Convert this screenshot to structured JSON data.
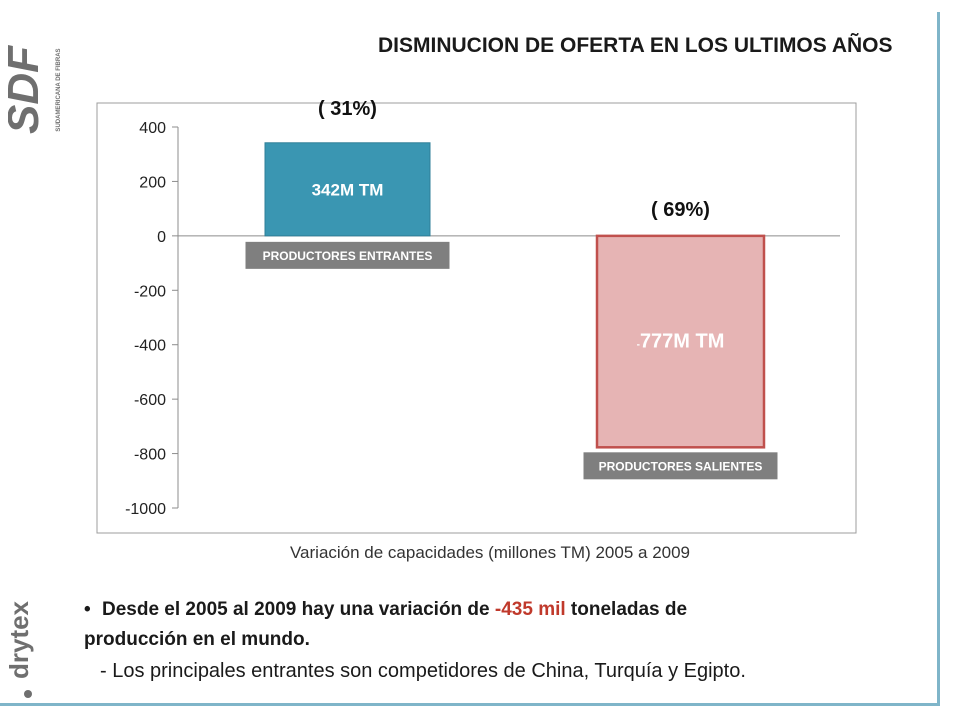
{
  "slide": {
    "title": "DISMINUCION DE OFERTA EN LOS ULTIMOS AÑOS",
    "logo_top_text": "SDF",
    "logo_top_subtext": "SUDAMERICANA DE FIBRAS",
    "logo_bottom_text": "drytex"
  },
  "colors": {
    "entrantes_fill": "#3a96b2",
    "salientes_fill": "#e6b4b4",
    "salientes_border": "#c0504d",
    "label_box": "#7f7f7f",
    "frame": "#7fb5c9"
  },
  "chart_data": {
    "type": "bar",
    "xlabel": "Variación de capacidades (millones TM) 2005 a 2009",
    "ylabel": "",
    "ylim": [
      -1000,
      400
    ],
    "yticks": [
      400,
      200,
      0,
      -200,
      -400,
      -600,
      -800,
      -1000
    ],
    "ytick_labels": [
      "400",
      "200",
      "0",
      "-200",
      "-400",
      "-600",
      "-800",
      "-1000"
    ],
    "grid": false,
    "categories": [
      "PRODUCTORES ENTRANTES",
      "PRODUCTORES SALIENTES"
    ],
    "values": [
      342,
      -777
    ],
    "data_labels": [
      "342M TM",
      "777M TM"
    ],
    "data_label_prefix": [
      "",
      "-"
    ],
    "share_labels": [
      "( 31%)",
      "( 69%)"
    ]
  },
  "bullets": {
    "line1_part1": "Desde el 2005 al 2009 hay una variación de ",
    "line1_highlight": "-435 mil",
    "line1_part2": " toneladas de",
    "line1_cont": "producción en el mundo.",
    "line2": "- Los principales entrantes son competidores de China, Turquía y Egipto.",
    "bullet_symbol": "•"
  }
}
